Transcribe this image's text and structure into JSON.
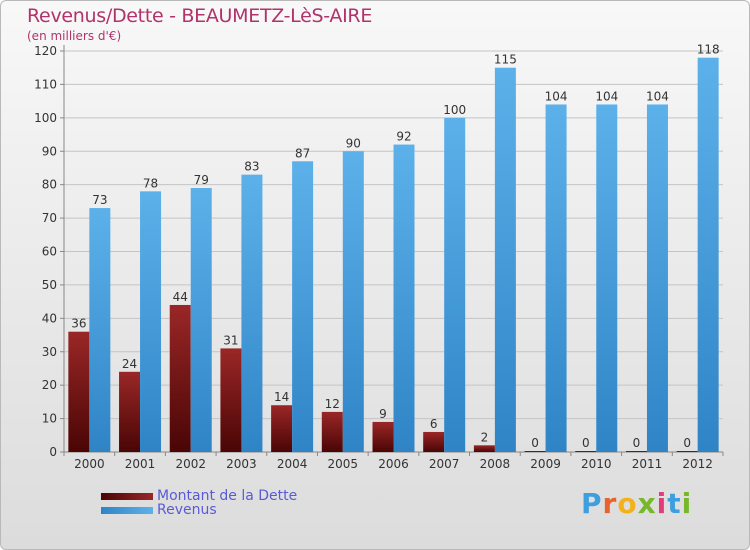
{
  "header": {
    "title": "Revenus/Dette - BEAUMETZ-LèS-AIRE",
    "subtitle": "(en milliers d'€)"
  },
  "legend": {
    "debt_label": "Montant de la Dette",
    "revenue_label": "Revenus"
  },
  "logo": {
    "letters": [
      "P",
      "r",
      "o",
      "x",
      "i",
      "t",
      "i"
    ],
    "colors": [
      "#3d9ee0",
      "#e8622a",
      "#f2b21e",
      "#77b82a",
      "#e23c7a",
      "#3d9ee0",
      "#77b82a"
    ]
  },
  "colors": {
    "debt_dark": "#4a0505",
    "debt_light": "#9a2727",
    "revenue_light": "#5db1ea",
    "revenue_dark": "#2f84c6",
    "title": "#b0336b",
    "legend_text": "#5a5ad8"
  },
  "chart_data": {
    "type": "bar",
    "categories": [
      "2000",
      "2001",
      "2002",
      "2003",
      "2004",
      "2005",
      "2006",
      "2007",
      "2008",
      "2009",
      "2010",
      "2011",
      "2012"
    ],
    "series": [
      {
        "name": "Montant de la Dette",
        "values": [
          36,
          24,
          44,
          31,
          14,
          12,
          9,
          6,
          2,
          0,
          0,
          0,
          0
        ]
      },
      {
        "name": "Revenus",
        "values": [
          73,
          78,
          79,
          83,
          87,
          90,
          92,
          100,
          115,
          104,
          104,
          104,
          118
        ]
      }
    ],
    "yticks": [
      0,
      10,
      20,
      30,
      40,
      50,
      60,
      70,
      80,
      90,
      100,
      110,
      120
    ],
    "ylim": [
      0,
      120
    ],
    "grid": true,
    "legend_position": "bottom-left"
  }
}
